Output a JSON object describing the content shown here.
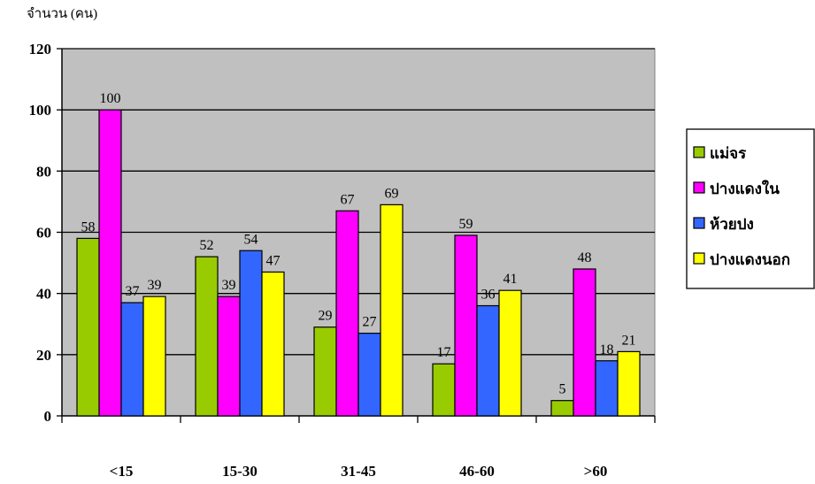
{
  "chart_data": {
    "type": "bar",
    "title": "",
    "ylabel": "จำนวน (คน)",
    "xlabel": "",
    "ylim": [
      0,
      120
    ],
    "yticks": [
      0,
      20,
      40,
      60,
      80,
      100,
      120
    ],
    "grid": true,
    "legend_position": "right",
    "categories": [
      "<15",
      "15-30",
      "31-45",
      "46-60",
      ">60"
    ],
    "series": [
      {
        "name": "แม่จร",
        "color": "#99cc00",
        "values": [
          58,
          52,
          29,
          17,
          5
        ]
      },
      {
        "name": "ปางแดงใน",
        "color": "#ff00ff",
        "values": [
          100,
          39,
          67,
          59,
          48
        ]
      },
      {
        "name": "ห้วยปง",
        "color": "#3366ff",
        "values": [
          37,
          54,
          27,
          36,
          18
        ]
      },
      {
        "name": "ปางแดงนอก",
        "color": "#ffff00",
        "values": [
          39,
          47,
          69,
          41,
          21
        ]
      }
    ],
    "plot_background": "#c0c0c0"
  }
}
